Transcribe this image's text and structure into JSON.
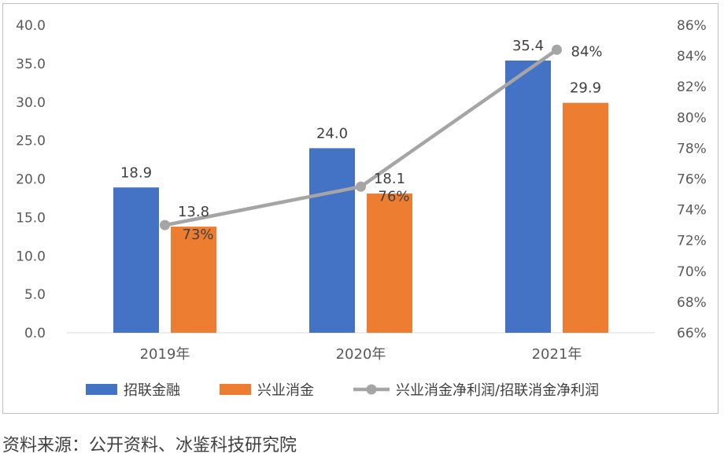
{
  "source_note": "资料来源：公开资料、冰鉴科技研究院",
  "chart_data": {
    "type": "bar",
    "categories": [
      "2019年",
      "2020年",
      "2021年"
    ],
    "series": [
      {
        "name": "招联金融",
        "kind": "bar",
        "axis": "left",
        "color": "#4472C4",
        "values": [
          18.9,
          24.0,
          35.4
        ],
        "labels": [
          "18.9",
          "24.0",
          "35.4"
        ]
      },
      {
        "name": "兴业消金",
        "kind": "bar",
        "axis": "left",
        "color": "#ED7D31",
        "values": [
          13.8,
          18.1,
          29.9
        ],
        "labels": [
          "13.8",
          "18.1",
          "29.9"
        ]
      },
      {
        "name": "兴业消金净利润/招联消金净利润",
        "kind": "line",
        "axis": "right",
        "color": "#A5A5A5",
        "values": [
          73,
          75.5,
          84.4
        ],
        "labels": [
          "73%",
          "76%",
          "84%"
        ]
      }
    ],
    "y_left": {
      "ylim": [
        0,
        40
      ],
      "ticks": [
        "0.0",
        "5.0",
        "10.0",
        "15.0",
        "20.0",
        "25.0",
        "30.0",
        "35.0",
        "40.0"
      ]
    },
    "y_right": {
      "ylim": [
        66,
        86
      ],
      "ticks": [
        "66%",
        "68%",
        "70%",
        "72%",
        "74%",
        "76%",
        "78%",
        "80%",
        "82%",
        "84%",
        "86%"
      ]
    },
    "legend_position": "bottom",
    "grid": false
  }
}
